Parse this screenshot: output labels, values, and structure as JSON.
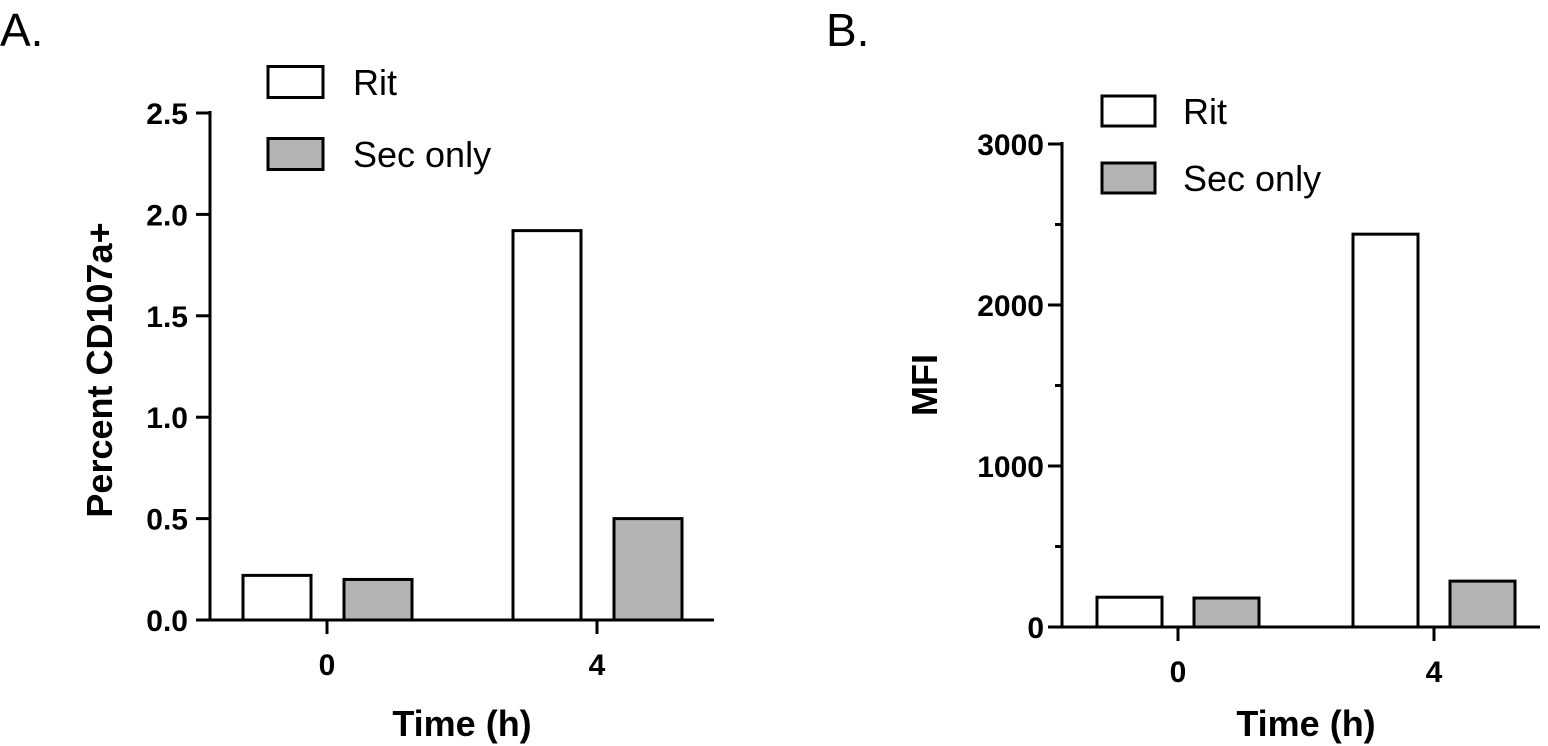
{
  "colors": {
    "rit": "#ffffff",
    "sec_only": "#b3b3b3",
    "stroke": "#000000"
  },
  "chart_data": [
    {
      "type": "bar",
      "panel_label": "A.",
      "categories": [
        "0",
        "4"
      ],
      "series": [
        {
          "name": "Rit",
          "values": [
            0.22,
            1.92
          ]
        },
        {
          "name": "Sec only",
          "values": [
            0.2,
            0.5
          ]
        }
      ],
      "xlabel": "Time (h)",
      "ylabel": "Percent CD107a+",
      "ylim": [
        0,
        2.5
      ],
      "yticks": [
        "0.0",
        "0.5",
        "1.0",
        "1.5",
        "2.0",
        "2.5"
      ],
      "legend": "top-left",
      "grid": false
    },
    {
      "type": "bar",
      "panel_label": "B.",
      "categories": [
        "0",
        "4"
      ],
      "series": [
        {
          "name": "Rit",
          "values": [
            185,
            2440
          ]
        },
        {
          "name": "Sec only",
          "values": [
            180,
            285
          ]
        }
      ],
      "xlabel": "Time (h)",
      "ylabel": "MFI",
      "ylim": [
        0,
        3000
      ],
      "yticks": [
        "0",
        "1000",
        "2000",
        "3000"
      ],
      "legend": "top-left",
      "grid": false
    }
  ]
}
